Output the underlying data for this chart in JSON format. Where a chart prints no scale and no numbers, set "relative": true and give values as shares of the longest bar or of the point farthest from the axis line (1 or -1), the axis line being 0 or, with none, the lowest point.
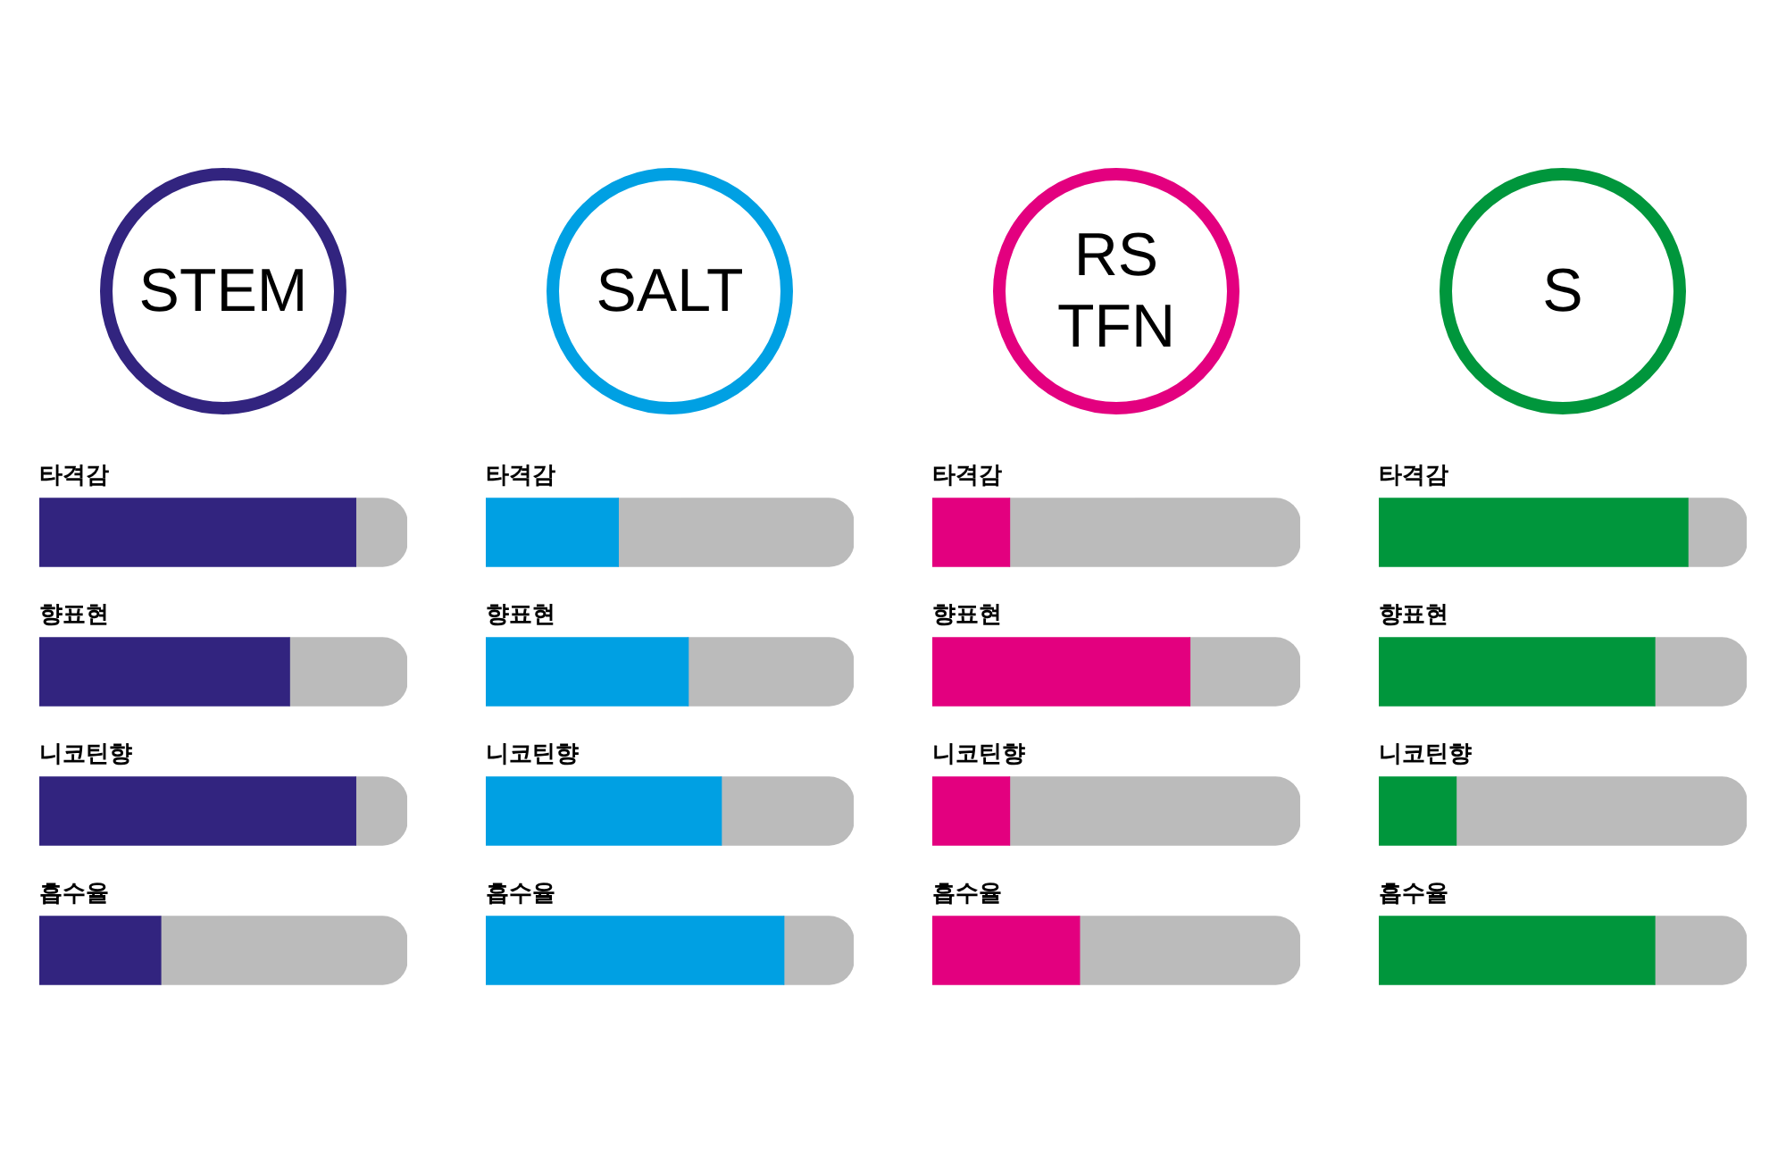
{
  "chart_data": [
    {
      "type": "bar",
      "orientation": "horizontal",
      "stacked": true,
      "relative": true,
      "title": "STEM",
      "categories": [
        "타격감",
        "향표현",
        "니코틴향",
        "흡수율"
      ],
      "series": [
        {
          "color": "#32247f",
          "values": [
            0.86,
            0.68,
            0.86,
            0.33
          ]
        },
        {
          "color": "#bbbbbb",
          "values": [
            0.14,
            0.32,
            0.14,
            0.67
          ]
        }
      ]
    },
    {
      "type": "bar",
      "orientation": "horizontal",
      "stacked": true,
      "relative": true,
      "title": "SALT",
      "categories": [
        "타격감",
        "향표현",
        "니코틴향",
        "흡수율"
      ],
      "series": [
        {
          "color": "#00a0e3",
          "values": [
            0.36,
            0.55,
            0.64,
            0.81
          ]
        },
        {
          "color": "#bbbbbb",
          "values": [
            0.64,
            0.45,
            0.36,
            0.19
          ]
        }
      ]
    },
    {
      "type": "bar",
      "orientation": "horizontal",
      "stacked": true,
      "relative": true,
      "title": "RS\nTFN",
      "categories": [
        "타격감",
        "향표현",
        "니코틴향",
        "흡수율"
      ],
      "series": [
        {
          "color": "#e3007f",
          "values": [
            0.21,
            0.7,
            0.21,
            0.4
          ]
        },
        {
          "color": "#bbbbbb",
          "values": [
            0.79,
            0.3,
            0.79,
            0.6
          ]
        }
      ]
    },
    {
      "type": "bar",
      "orientation": "horizontal",
      "stacked": true,
      "relative": true,
      "title": "S",
      "categories": [
        "타격감",
        "향표현",
        "니코틴향",
        "흡수율"
      ],
      "series": [
        {
          "color": "#00963c",
          "values": [
            0.84,
            0.75,
            0.21,
            0.75
          ]
        },
        {
          "color": "#bbbbbb",
          "values": [
            0.16,
            0.25,
            0.79,
            0.25
          ]
        }
      ]
    }
  ]
}
